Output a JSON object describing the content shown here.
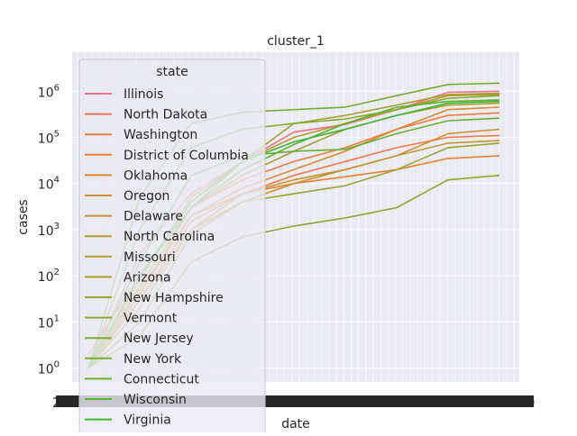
{
  "chart_data": {
    "type": "line",
    "title": "cluster_1",
    "xlabel": "date",
    "ylabel": "cases",
    "yscale": "log",
    "ylim": [
      0.5,
      7000000
    ],
    "ytick_values": [
      1,
      10,
      100,
      1000,
      10000,
      100000,
      1000000
    ],
    "ytick_labels": [
      "10^0",
      "10^1",
      "10^2",
      "10^3",
      "10^4",
      "10^5",
      "10^6"
    ],
    "xtick_labels": [
      "2",
      "9"
    ],
    "grid": true,
    "background": "#eaeaf2",
    "legend": {
      "title": "state",
      "placement": "upper-left",
      "entries": [
        {
          "name": "Illinois",
          "color": "#f77189"
        },
        {
          "name": "North Dakota",
          "color": "#f7754f"
        },
        {
          "name": "Washington",
          "color": "#f37a3c"
        },
        {
          "name": "District of Columbia",
          "color": "#e6822f"
        },
        {
          "name": "Oklahoma",
          "color": "#d98a31"
        },
        {
          "name": "Oregon",
          "color": "#cd9031"
        },
        {
          "name": "Delaware",
          "color": "#c29531"
        },
        {
          "name": "North Carolina",
          "color": "#b89a31"
        },
        {
          "name": "Missouri",
          "color": "#ae9d31"
        },
        {
          "name": "Arizona",
          "color": "#a4a031"
        },
        {
          "name": "New Hampshire",
          "color": "#9aa331"
        },
        {
          "name": "Vermont",
          "color": "#90a631"
        },
        {
          "name": "New Jersey",
          "color": "#85a931"
        },
        {
          "name": "New York",
          "color": "#78ac31"
        },
        {
          "name": "Connecticut",
          "color": "#6aaf32"
        },
        {
          "name": "Wisconsin",
          "color": "#5ab232"
        },
        {
          "name": "Virginia",
          "color": "#40b534"
        }
      ]
    },
    "series": [
      {
        "name": "Illinois",
        "color": "#f77189",
        "values": [
          1,
          300,
          6000,
          30000,
          130000,
          190000,
          400000,
          950000,
          1000000
        ]
      },
      {
        "name": "North Dakota",
        "color": "#f7754f",
        "values": [
          1,
          30,
          1500,
          6000,
          15000,
          30000,
          60000,
          100000,
          110000
        ]
      },
      {
        "name": "Washington",
        "color": "#f37a3c",
        "values": [
          2,
          100,
          3000,
          12000,
          30000,
          60000,
          150000,
          300000,
          340000
        ]
      },
      {
        "name": "District of Columbia",
        "color": "#e6822f",
        "values": [
          1,
          50,
          2000,
          6000,
          10000,
          14000,
          20000,
          35000,
          40000
        ]
      },
      {
        "name": "Oklahoma",
        "color": "#d98a31",
        "values": [
          1,
          40,
          2000,
          8000,
          20000,
          50000,
          150000,
          400000,
          450000
        ]
      },
      {
        "name": "Oregon",
        "color": "#cd9031",
        "values": [
          1,
          30,
          1000,
          4000,
          10000,
          20000,
          40000,
          120000,
          150000
        ]
      },
      {
        "name": "Delaware",
        "color": "#c29531",
        "values": [
          1,
          20,
          1000,
          6000,
          12000,
          20000,
          40000,
          75000,
          85000
        ]
      },
      {
        "name": "North Carolina",
        "color": "#b89a31",
        "values": [
          1,
          80,
          5000,
          30000,
          100000,
          200000,
          400000,
          800000,
          850000
        ]
      },
      {
        "name": "Missouri",
        "color": "#ae9d31",
        "values": [
          1,
          60,
          3000,
          15000,
          50000,
          150000,
          300000,
          500000,
          550000
        ]
      },
      {
        "name": "Arizona",
        "color": "#a4a031",
        "values": [
          1,
          40,
          3000,
          30000,
          200000,
          300000,
          500000,
          850000,
          900000
        ]
      },
      {
        "name": "New Hampshire",
        "color": "#9aa331",
        "values": [
          1,
          10,
          800,
          4000,
          6000,
          9000,
          20000,
          60000,
          75000
        ]
      },
      {
        "name": "Vermont",
        "color": "#90a631",
        "values": [
          1,
          5,
          200,
          700,
          1200,
          1800,
          3000,
          12000,
          15000
        ]
      },
      {
        "name": "New Jersey",
        "color": "#85a931",
        "values": [
          1,
          1000,
          60000,
          150000,
          200000,
          250000,
          400000,
          700000,
          800000
        ]
      },
      {
        "name": "New York",
        "color": "#78ac31",
        "values": [
          1,
          5000,
          200000,
          350000,
          400000,
          450000,
          800000,
          1400000,
          1500000
        ]
      },
      {
        "name": "Connecticut",
        "color": "#6aaf32",
        "values": [
          1,
          200,
          15000,
          40000,
          50000,
          55000,
          120000,
          230000,
          260000
        ]
      },
      {
        "name": "Wisconsin",
        "color": "#5ab232",
        "values": [
          1,
          100,
          3000,
          20000,
          70000,
          200000,
          450000,
          600000,
          650000
        ]
      },
      {
        "name": "Virginia",
        "color": "#40b534",
        "values": [
          1,
          100,
          4000,
          30000,
          80000,
          150000,
          300000,
          550000,
          600000
        ]
      }
    ]
  }
}
